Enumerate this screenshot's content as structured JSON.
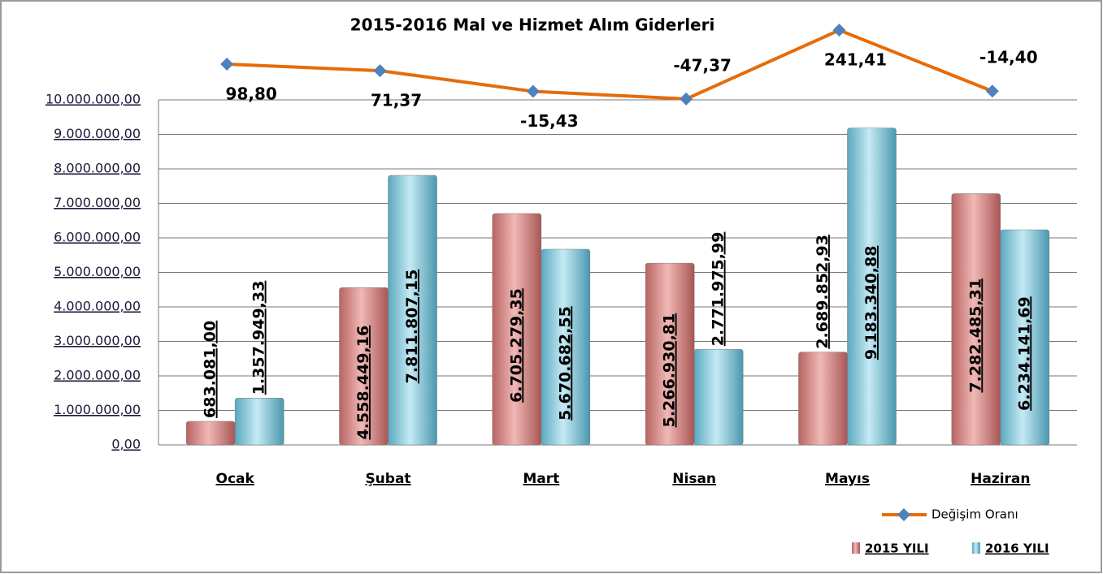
{
  "chart_data": {
    "type": "bar",
    "title": "2015-2016 Mal ve Hizmet Alım Giderleri",
    "categories": [
      "Ocak",
      "Şubat",
      "Mart",
      "Nisan",
      "Mayıs",
      "Haziran"
    ],
    "series": [
      {
        "name": "2015 YILI",
        "color": "#d99694",
        "values": [
          683081.0,
          4558449.16,
          6705279.35,
          5266930.81,
          2689852.93,
          7282485.31
        ],
        "value_labels": [
          "683.081,00",
          "4.558.449,16",
          "6.705.279,35",
          "5.266.930,81",
          "2.689.852,93",
          "7.282.485,31"
        ]
      },
      {
        "name": "2016 YILI",
        "color": "#93cddd",
        "values": [
          1357949.33,
          7811807.15,
          5670682.55,
          2771975.99,
          9183340.88,
          6234141.69
        ],
        "value_labels": [
          "1.357.949,33",
          "7.811.807,15",
          "5.670.682,55",
          "2.771.975,99",
          "9.183.340,88",
          "6.234.141,69"
        ]
      },
      {
        "name": "Değişim Oranı",
        "type": "line",
        "axis": "y2",
        "color": "#e46c0a",
        "marker_color": "#4f81bd",
        "values": [
          98.8,
          71.37,
          -15.43,
          -47.37,
          241.41,
          -14.4
        ],
        "value_labels": [
          "98,80",
          "71,37",
          "-15,43",
          "-47,37",
          "241,41",
          "-14,40"
        ]
      }
    ],
    "ylim": [
      0,
      10000000
    ],
    "yticks": [
      {
        "value": 0,
        "label": "0,00"
      },
      {
        "value": 1000000,
        "label": "1.000.000,00"
      },
      {
        "value": 2000000,
        "label": "2.000.000,00"
      },
      {
        "value": 3000000,
        "label": "3.000.000,00"
      },
      {
        "value": 4000000,
        "label": "4.000.000,00"
      },
      {
        "value": 5000000,
        "label": "5.000.000,00"
      },
      {
        "value": 6000000,
        "label": "6.000.000,00"
      },
      {
        "value": 7000000,
        "label": "7.000.000,00"
      },
      {
        "value": 8000000,
        "label": "8.000.000,00"
      },
      {
        "value": 9000000,
        "label": "9.000.000,00"
      },
      {
        "value": 10000000,
        "label": "10.000.000,00"
      }
    ],
    "y2lim": [
      -1500,
      300
    ],
    "grid": true,
    "legend": "bottom-right"
  }
}
